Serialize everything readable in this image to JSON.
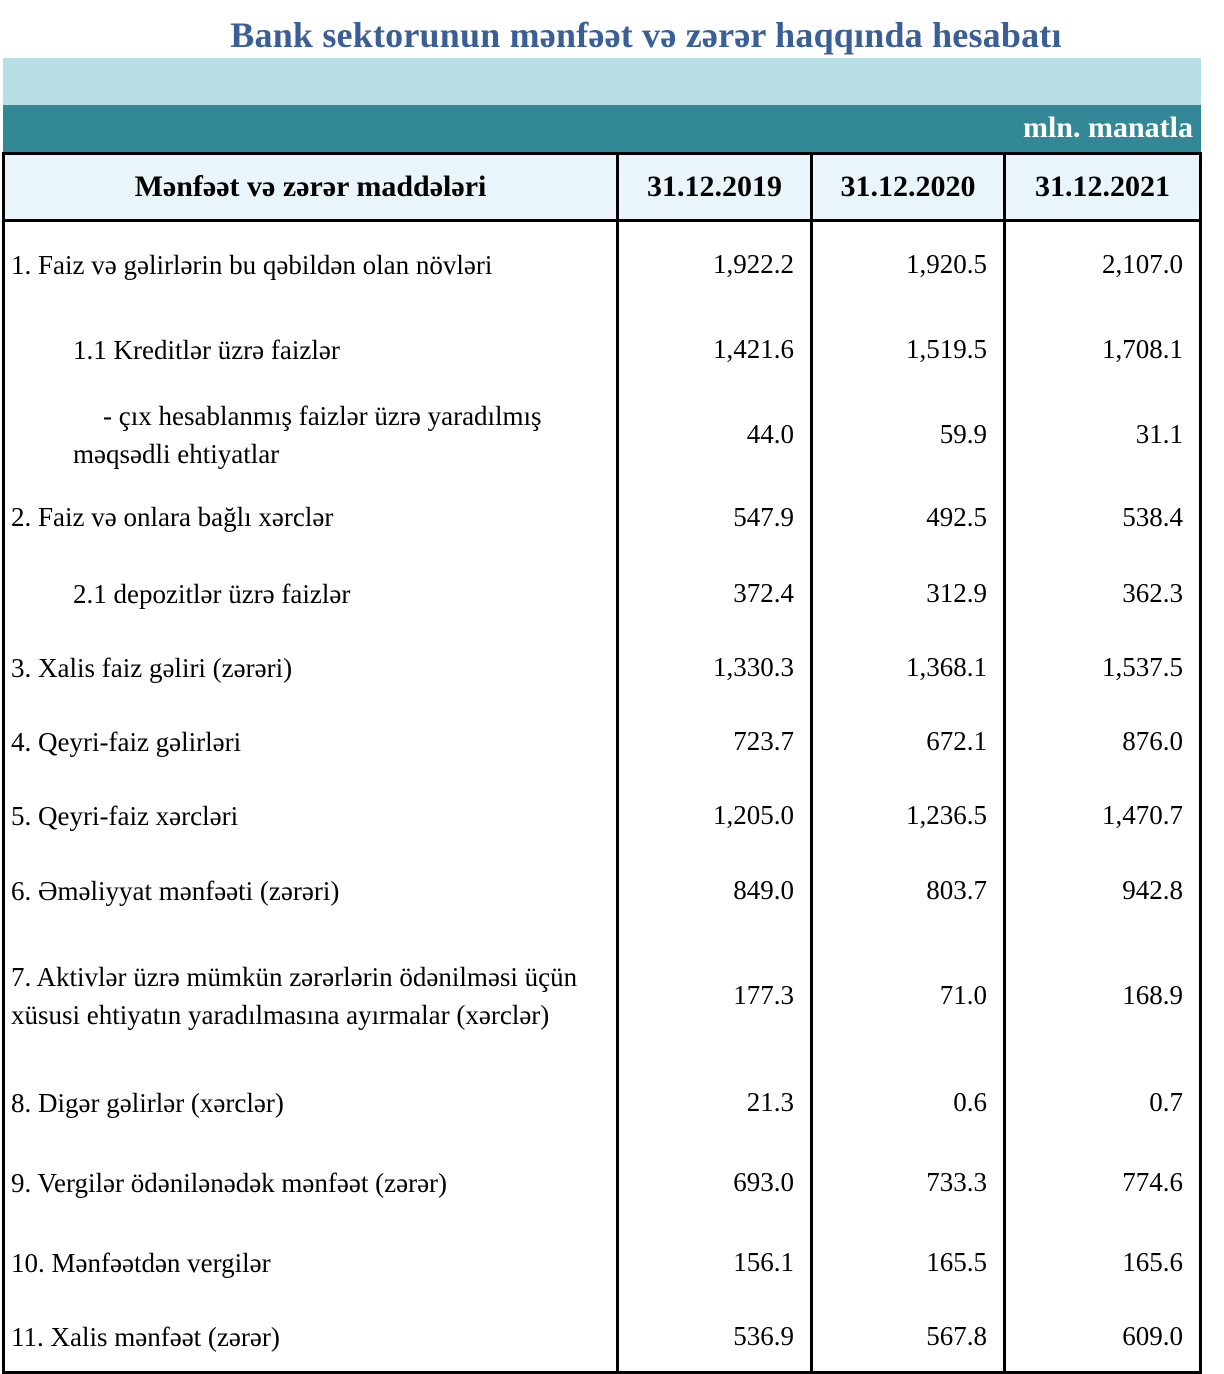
{
  "title": "Bank sektorunun mənfəət və zərər haqqında hesabatı",
  "unit": "mln. manatla",
  "columns": [
    "Mənfəət və zərər maddələri",
    "31.12.2019",
    "31.12.2020",
    "31.12.2021"
  ],
  "rows": [
    {
      "label": "1. Faiz və gəlirlərin bu qəbildən olan növləri",
      "v": [
        "1,922.2",
        "1,920.5",
        "2,107.0"
      ]
    },
    {
      "label": "1.1 Kreditlər üzrə faizlər",
      "v": [
        "1,421.6",
        "1,519.5",
        "1,708.1"
      ]
    },
    {
      "label": "-  çıx hesablanmış faizlər üzrə yaradılmış məqsədli ehtiyatlar",
      "v": [
        "44.0",
        "59.9",
        "31.1"
      ]
    },
    {
      "label": "2. Faiz və onlara bağlı xərclər",
      "v": [
        "547.9",
        "492.5",
        "538.4"
      ]
    },
    {
      "label": "2.1 depozitlər üzrə faizlər",
      "v": [
        "372.4",
        "312.9",
        "362.3"
      ]
    },
    {
      "label": "3. Xalis faiz gəliri (zərəri)",
      "v": [
        "1,330.3",
        "1,368.1",
        "1,537.5"
      ]
    },
    {
      "label": "4. Qeyri-faiz gəlirləri",
      "v": [
        "723.7",
        "672.1",
        "876.0"
      ]
    },
    {
      "label": "5. Qeyri-faiz xərcləri",
      "v": [
        "1,205.0",
        "1,236.5",
        "1,470.7"
      ]
    },
    {
      "label": "6. Əməliyyat mənfəəti (zərəri)",
      "v": [
        "849.0",
        "803.7",
        "942.8"
      ]
    },
    {
      "label": "7. Aktivlər üzrə mümkün zərərlərin ödənilməsi üçün xüsusi ehtiyatın yaradılmasına ayırmalar (xərclər)",
      "v": [
        "177.3",
        "71.0",
        "168.9"
      ]
    },
    {
      "label": "8. Digər gəlirlər (xərclər)",
      "v": [
        "21.3",
        "0.6",
        "0.7"
      ]
    },
    {
      "label": "9. Vergilər ödənilənədək mənfəət (zərər)",
      "v": [
        "693.0",
        "733.3",
        "774.6"
      ]
    },
    {
      "label": "10. Mənfəətdən vergilər",
      "v": [
        "156.1",
        "165.5",
        "165.6"
      ]
    },
    {
      "label": "11. Xalis mənfəət (zərər)",
      "v": [
        "536.9",
        "567.8",
        "609.0"
      ]
    }
  ]
}
